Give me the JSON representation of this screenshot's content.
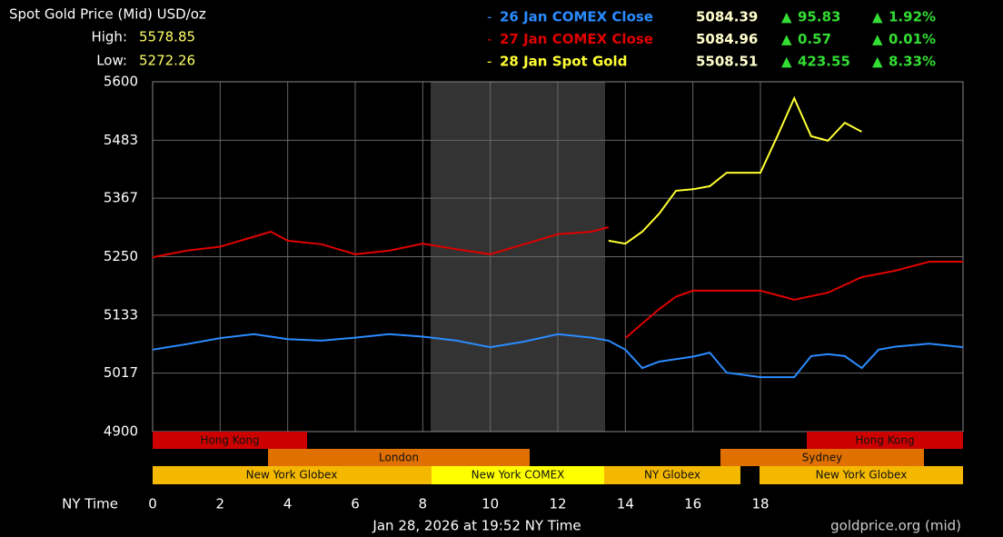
{
  "chart_data": {
    "type": "line",
    "title": "Spot Gold Price (Mid) USD/oz",
    "high_label": "High:",
    "high": "5578.85",
    "low_label": "Low:",
    "low": "5272.26",
    "x_label": "NY Time",
    "subtitle": "Jan 28, 2026 at 19:52 NY Time",
    "source": "goldprice.org (mid)",
    "xlim": [
      0,
      24
    ],
    "xticks": [
      0,
      2,
      4,
      6,
      8,
      10,
      12,
      14,
      16,
      18
    ],
    "ylim": [
      4900,
      5600
    ],
    "yticks": [
      4900,
      5017,
      5133,
      5250,
      5367,
      5483,
      5600
    ],
    "grid": true,
    "sessions": [
      "Hong Kong",
      "London",
      "New York Globex",
      "New York COMEX",
      "NY Globex",
      "Sydney",
      "Hong Kong",
      "New York Globex"
    ],
    "series": [
      {
        "name": "26 Jan COMEX Close",
        "color": "#2a8cff",
        "last": "5084.39",
        "change": "95.83",
        "change_pct": "1.92%",
        "x": [
          0,
          1,
          2,
          3,
          4,
          5,
          6,
          7,
          8,
          9,
          10,
          11,
          12,
          13,
          13.5,
          14,
          14.5,
          15,
          15.5,
          16,
          16.5,
          17,
          18,
          19,
          19.5,
          20,
          20.5,
          21,
          21.5,
          22,
          23,
          24
        ],
        "values": [
          5064,
          5075,
          5087,
          5095,
          5085,
          5082,
          5088,
          5095,
          5090,
          5082,
          5069,
          5080,
          5095,
          5088,
          5082,
          5064,
          5027,
          5040,
          5045,
          5050,
          5058,
          5018,
          5009,
          5009,
          5051,
          5055,
          5051,
          5027,
          5064,
          5070,
          5076,
          5069
        ]
      },
      {
        "name": "27 Jan COMEX Close",
        "color": "#e00000",
        "last": "5084.96",
        "change": "0.57",
        "change_pct": "0.01%",
        "x": [
          0,
          1,
          2,
          3,
          3.5,
          4,
          5,
          6,
          7,
          8,
          9,
          10,
          11,
          12,
          13,
          13.5,
          13.5,
          14,
          15,
          15.5,
          16,
          17,
          18,
          19,
          20,
          21,
          22,
          23,
          24
        ],
        "values": [
          5249,
          5262,
          5270,
          5290,
          5300,
          5282,
          5275,
          5255,
          5262,
          5276,
          5265,
          5255,
          5275,
          5295,
          5300,
          5309,
          null,
          5087,
          5145,
          5170,
          5182,
          5182,
          5182,
          5164,
          5178,
          5209,
          5222,
          5240,
          5240
        ]
      },
      {
        "name": "28 Jan Spot Gold",
        "color": "#ffff33",
        "last": "5508.51",
        "change": "423.55",
        "change_pct": "8.33%",
        "x": [
          13.5,
          14,
          14.5,
          15,
          15.5,
          16,
          16.5,
          17,
          18,
          18.5,
          19,
          19.5,
          20,
          20.5,
          21
        ],
        "values": [
          5282,
          5276,
          5300,
          5336,
          5382,
          5385,
          5391,
          5418,
          5418,
          5491,
          5567,
          5491,
          5482,
          5518,
          5500
        ]
      }
    ]
  }
}
